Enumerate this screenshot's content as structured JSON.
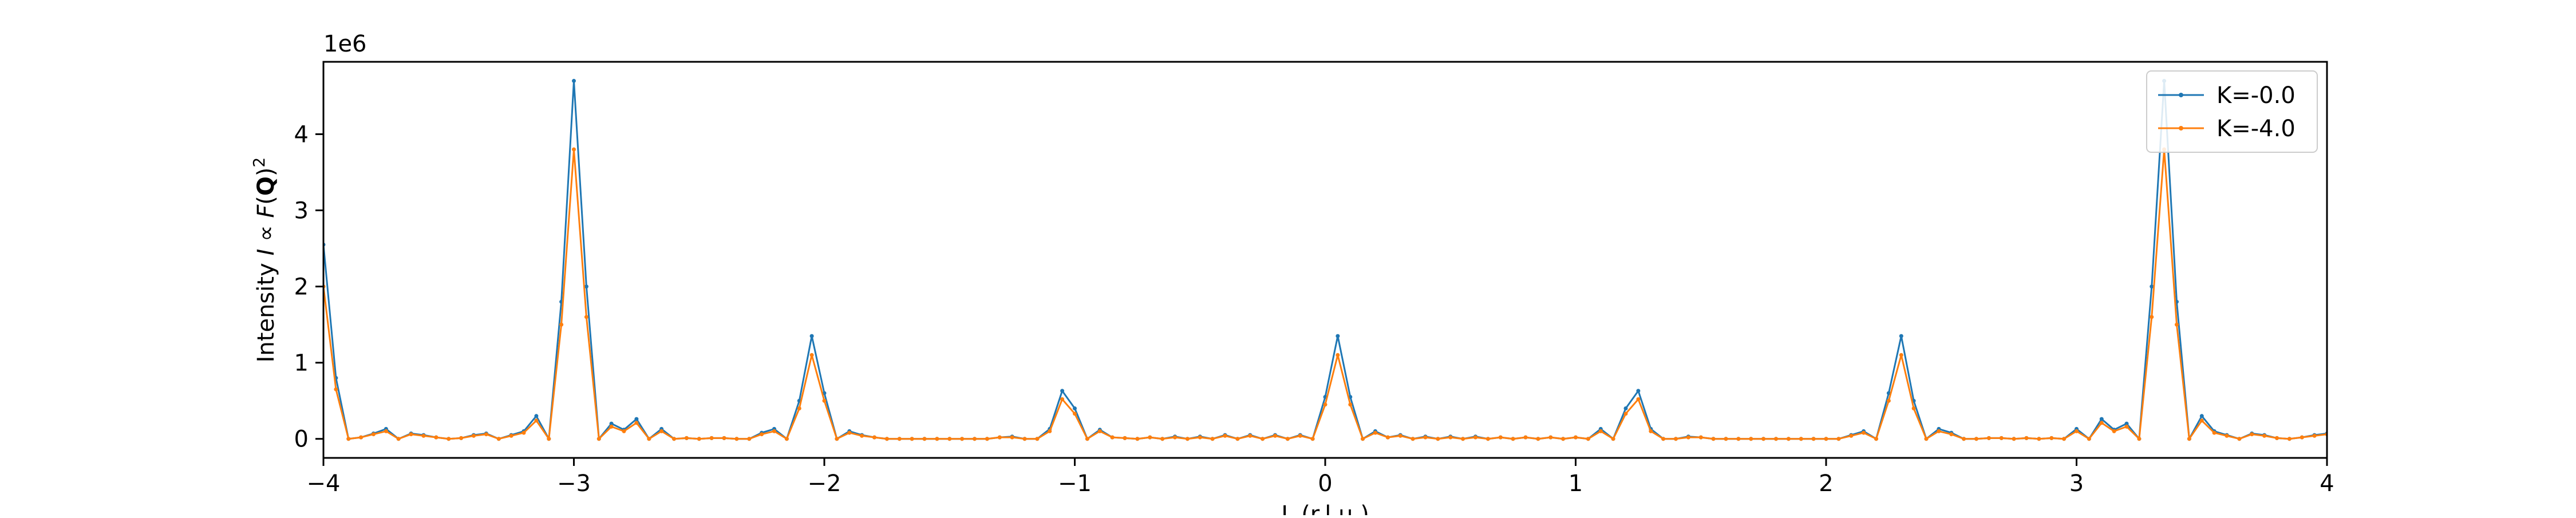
{
  "chart_data": {
    "type": "line",
    "title": "",
    "xlabel": "L (r.l.u.)",
    "ylabel": "Intensity I ∝ F(Q)²",
    "ylabel_parts": {
      "prefix": "Intensity ",
      "italic_i": "I",
      "propto": " ∝ ",
      "italic_f": "F",
      "open": "(",
      "bold_q": "Q",
      "close": ")",
      "sup": "2"
    },
    "y_offset_text": "1e6",
    "xlim": [
      -4,
      4
    ],
    "ylim": [
      -0.25,
      4.95
    ],
    "y_scale_factor": 1000000,
    "x_ticks": [
      -4,
      -3,
      -2,
      -1,
      0,
      1,
      2,
      3,
      4
    ],
    "x_tick_labels": [
      "−4",
      "−3",
      "−2",
      "−1",
      "0",
      "1",
      "2",
      "3",
      "4"
    ],
    "y_ticks": [
      0,
      1,
      2,
      3,
      4
    ],
    "y_tick_labels": [
      "0",
      "1",
      "2",
      "3",
      "4"
    ],
    "grid": false,
    "legend_position": "top-right",
    "x_step": 0.05,
    "series": [
      {
        "name": "K=-0.0",
        "color": "#1f77b4",
        "values": [
          2.55,
          0.8,
          0.0,
          0.02,
          0.07,
          0.13,
          0.0,
          0.07,
          0.05,
          0.02,
          0.0,
          0.01,
          0.05,
          0.07,
          0.0,
          0.05,
          0.1,
          0.3,
          0.0,
          1.8,
          4.7,
          2.0,
          0.0,
          0.2,
          0.12,
          0.26,
          0.0,
          0.13,
          0.0,
          0.01,
          0.0,
          0.01,
          0.01,
          0.0,
          0.0,
          0.08,
          0.13,
          0.0,
          0.5,
          1.35,
          0.6,
          0.0,
          0.1,
          0.05,
          0.02,
          0.0,
          0.0,
          0.0,
          0.0,
          0.0,
          0.0,
          0.0,
          0.0,
          0.0,
          0.02,
          0.03,
          0.0,
          0.0,
          0.13,
          0.63,
          0.4,
          0.0,
          0.12,
          0.02,
          0.01,
          0.0,
          0.02,
          0.0,
          0.03,
          0.0,
          0.03,
          0.0,
          0.05,
          0.0,
          0.05,
          0.0,
          0.05,
          0.0,
          0.05,
          0.0,
          0.55,
          1.35,
          0.55,
          0.0,
          0.1,
          0.02,
          0.05,
          0.0,
          0.03,
          0.0,
          0.03,
          0.0,
          0.03,
          0.0,
          0.02,
          0.0,
          0.02,
          0.0,
          0.02,
          0.0,
          0.02,
          0.0,
          0.13,
          0.0,
          0.4,
          0.63,
          0.13,
          0.0,
          0.0,
          0.03,
          0.02,
          0.0,
          0.0,
          0.0,
          0.0,
          0.0,
          0.0,
          0.0,
          0.0,
          0.0,
          0.0,
          0.0,
          0.05,
          0.1,
          0.0,
          0.6,
          1.35,
          0.5,
          0.0,
          0.13,
          0.08,
          0.0,
          0.0,
          0.01,
          0.01,
          0.0,
          0.01,
          0.0,
          0.01,
          0.0,
          0.13,
          0.0,
          0.26,
          0.12,
          0.2,
          0.0,
          2.0,
          4.7,
          1.8,
          0.0,
          0.3,
          0.1,
          0.05,
          0.0,
          0.07,
          0.05,
          0.01,
          0.0,
          0.02,
          0.05,
          0.07,
          0.0,
          0.13,
          0.07,
          0.02,
          0.0,
          0.8,
          2.55
        ]
      },
      {
        "name": "K=-4.0",
        "color": "#ff7f0e",
        "values": [
          2.0,
          0.65,
          0.0,
          0.02,
          0.06,
          0.1,
          0.0,
          0.06,
          0.04,
          0.02,
          0.0,
          0.01,
          0.04,
          0.06,
          0.0,
          0.04,
          0.08,
          0.24,
          0.0,
          1.5,
          3.8,
          1.6,
          0.0,
          0.16,
          0.1,
          0.21,
          0.0,
          0.1,
          0.0,
          0.01,
          0.0,
          0.01,
          0.01,
          0.0,
          0.0,
          0.06,
          0.1,
          0.0,
          0.4,
          1.1,
          0.5,
          0.0,
          0.08,
          0.04,
          0.02,
          0.0,
          0.0,
          0.0,
          0.0,
          0.0,
          0.0,
          0.0,
          0.0,
          0.0,
          0.02,
          0.02,
          0.0,
          0.0,
          0.1,
          0.52,
          0.33,
          0.0,
          0.1,
          0.02,
          0.01,
          0.0,
          0.02,
          0.0,
          0.02,
          0.0,
          0.02,
          0.0,
          0.04,
          0.0,
          0.04,
          0.0,
          0.04,
          0.0,
          0.04,
          0.0,
          0.45,
          1.1,
          0.45,
          0.0,
          0.08,
          0.02,
          0.04,
          0.0,
          0.02,
          0.0,
          0.02,
          0.0,
          0.02,
          0.0,
          0.02,
          0.0,
          0.02,
          0.0,
          0.02,
          0.0,
          0.02,
          0.0,
          0.1,
          0.0,
          0.33,
          0.52,
          0.1,
          0.0,
          0.0,
          0.02,
          0.02,
          0.0,
          0.0,
          0.0,
          0.0,
          0.0,
          0.0,
          0.0,
          0.0,
          0.0,
          0.0,
          0.0,
          0.04,
          0.08,
          0.0,
          0.5,
          1.1,
          0.4,
          0.0,
          0.1,
          0.06,
          0.0,
          0.0,
          0.01,
          0.01,
          0.0,
          0.01,
          0.0,
          0.01,
          0.0,
          0.1,
          0.0,
          0.21,
          0.1,
          0.16,
          0.0,
          1.6,
          3.8,
          1.5,
          0.0,
          0.24,
          0.08,
          0.04,
          0.0,
          0.06,
          0.04,
          0.01,
          0.0,
          0.02,
          0.04,
          0.06,
          0.0,
          0.1,
          0.06,
          0.02,
          0.0,
          0.65,
          2.0
        ]
      }
    ]
  }
}
